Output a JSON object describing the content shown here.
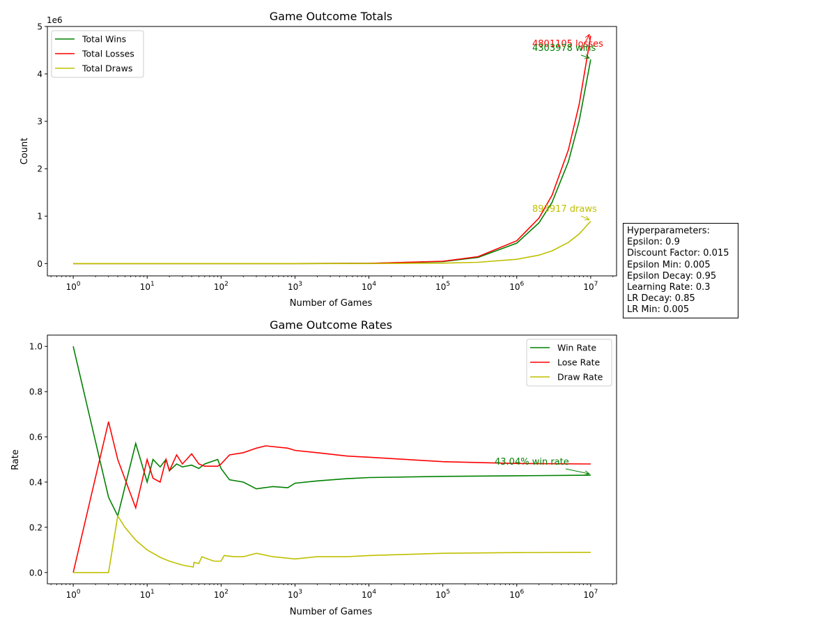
{
  "chart_data": [
    {
      "type": "line",
      "title": "Game Outcome Totals",
      "xlabel": "Number of Games",
      "ylabel": "Count",
      "x_scale": "log",
      "xlim": [
        1,
        10000000
      ],
      "ylim": [
        0,
        5000000
      ],
      "y_offset_text": "1e6",
      "y_ticks": [
        0,
        1,
        2,
        3,
        4,
        5
      ],
      "grid": false,
      "legend_position": "upper-left",
      "series": [
        {
          "name": "Total Wins",
          "color": "#008000",
          "x": [
            1,
            10,
            100,
            1000,
            10000,
            100000,
            300000,
            1000000,
            2000000,
            3000000,
            5000000,
            7000000,
            10000000
          ],
          "y": [
            1,
            5,
            45,
            400,
            4200,
            43000,
            130000,
            430000,
            860000,
            1290000,
            2150000,
            3010000,
            4303978
          ]
        },
        {
          "name": "Total Losses",
          "color": "#ff0000",
          "x": [
            1,
            10,
            100,
            1000,
            10000,
            100000,
            300000,
            1000000,
            2000000,
            3000000,
            5000000,
            7000000,
            10000000
          ],
          "y": [
            0,
            5,
            48,
            550,
            5100,
            49000,
            145000,
            480000,
            960000,
            1440000,
            2400000,
            3360000,
            4801105
          ]
        },
        {
          "name": "Total Draws",
          "color": "#bfbf00",
          "x": [
            1,
            10,
            100,
            1000,
            10000,
            100000,
            300000,
            1000000,
            2000000,
            3000000,
            5000000,
            7000000,
            10000000
          ],
          "y": [
            0,
            1,
            5,
            65,
            750,
            8700,
            26500,
            89000,
            178000,
            268000,
            447000,
            625000,
            893917
          ]
        }
      ],
      "annotations": [
        {
          "text": "4801105 losses",
          "color": "#ff0000",
          "x": 10000000,
          "y": 4801105
        },
        {
          "text": "4303978 wins",
          "color": "#008000",
          "x": 10000000,
          "y": 4303978
        },
        {
          "text": "893917 draws",
          "color": "#bfbf00",
          "x": 10000000,
          "y": 893917
        }
      ]
    },
    {
      "type": "line",
      "title": "Game Outcome Rates",
      "xlabel": "Number of Games",
      "ylabel": "Rate",
      "x_scale": "log",
      "xlim": [
        1,
        10000000
      ],
      "ylim": [
        0,
        1.05
      ],
      "y_ticks": [
        0.0,
        0.2,
        0.4,
        0.6,
        0.8,
        1.0
      ],
      "grid": false,
      "legend_position": "upper-right",
      "series": [
        {
          "name": "Win Rate",
          "color": "#008000",
          "x": [
            1,
            3,
            4,
            7,
            10,
            12,
            15,
            18,
            20,
            25,
            30,
            40,
            50,
            60,
            90,
            100,
            130,
            200,
            300,
            500,
            800,
            1000,
            2000,
            5000,
            10000,
            100000,
            1000000,
            10000000
          ],
          "y": [
            1.0,
            0.333,
            0.25,
            0.571,
            0.4,
            0.5,
            0.467,
            0.5,
            0.45,
            0.48,
            0.467,
            0.475,
            0.46,
            0.48,
            0.5,
            0.46,
            0.41,
            0.4,
            0.37,
            0.38,
            0.375,
            0.395,
            0.405,
            0.415,
            0.42,
            0.425,
            0.428,
            0.4304
          ]
        },
        {
          "name": "Lose Rate",
          "color": "#ff0000",
          "x": [
            1,
            3,
            4,
            7,
            10,
            12,
            15,
            18,
            20,
            25,
            30,
            40,
            50,
            60,
            90,
            100,
            130,
            200,
            300,
            400,
            800,
            1000,
            2000,
            5000,
            10000,
            100000,
            1000000,
            10000000
          ],
          "y": [
            0.0,
            0.667,
            0.5,
            0.286,
            0.5,
            0.417,
            0.4,
            0.5,
            0.45,
            0.52,
            0.48,
            0.525,
            0.48,
            0.47,
            0.47,
            0.48,
            0.52,
            0.53,
            0.55,
            0.56,
            0.55,
            0.54,
            0.53,
            0.515,
            0.51,
            0.49,
            0.482,
            0.4801
          ]
        },
        {
          "name": "Draw Rate",
          "color": "#bfbf00",
          "x": [
            1,
            3,
            4,
            5,
            7,
            10,
            15,
            20,
            30,
            42,
            43,
            50,
            55,
            60,
            80,
            100,
            110,
            150,
            200,
            300,
            500,
            1000,
            2000,
            5000,
            10000,
            100000,
            1000000,
            10000000
          ],
          "y": [
            0.0,
            0.0,
            0.25,
            0.2,
            0.143,
            0.1,
            0.067,
            0.05,
            0.033,
            0.024,
            0.045,
            0.04,
            0.07,
            0.065,
            0.05,
            0.05,
            0.075,
            0.07,
            0.07,
            0.085,
            0.07,
            0.06,
            0.07,
            0.07,
            0.075,
            0.085,
            0.088,
            0.0894
          ]
        }
      ],
      "annotations": [
        {
          "text": "43.04% win rate",
          "color": "#008000",
          "x": 10000000,
          "y": 0.4304
        }
      ]
    }
  ],
  "hyperparameters": {
    "heading": "Hyperparameters:",
    "lines": [
      "Epsilon: 0.9",
      "Discount Factor: 0.015",
      "Epsilon Min: 0.005",
      "Epsilon Decay: 0.95",
      "Learning Rate: 0.3",
      "LR Decay: 0.85",
      "LR Min: 0.005"
    ]
  }
}
